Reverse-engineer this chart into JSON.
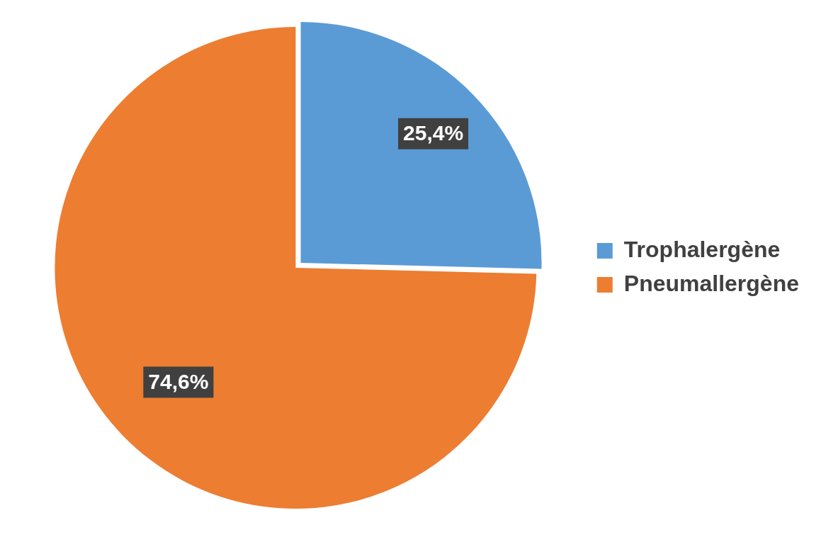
{
  "chart_data": {
    "type": "pie",
    "categories": [
      "Trophalergène",
      "Pneumallergène"
    ],
    "values": [
      25.4,
      74.6
    ],
    "colors": [
      "#5b9bd5",
      "#ed7d31"
    ],
    "value_labels": [
      "25,4%",
      "74,6%"
    ],
    "legend": "right"
  }
}
